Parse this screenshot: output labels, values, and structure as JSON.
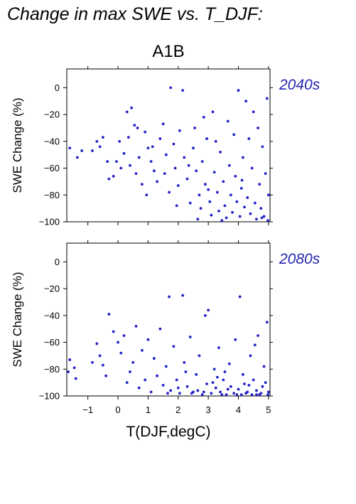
{
  "title": "Change in max SWE vs. T_DJF:",
  "colors": {
    "points": "#2020c8",
    "period_label": "#2626b0",
    "axes": "#000000"
  },
  "chart_data": [
    {
      "type": "scatter",
      "scenario": "A1B",
      "period": "2040s",
      "xlabel": "T(DJF,degC)",
      "ylabel": "SWE Change (%)",
      "xlim": [
        -1.7,
        5.05
      ],
      "ylim": [
        -100,
        14
      ],
      "x_ticks": [
        -1,
        0,
        1,
        2,
        3,
        4,
        5
      ],
      "y_ticks": [
        0,
        -20,
        -40,
        -60,
        -80,
        -100
      ],
      "x_tick_labels": [],
      "y_tick_labels": [
        "0",
        "−20",
        "−40",
        "−60",
        "−80",
        "−100"
      ],
      "grid": false,
      "points": [
        [
          -1.6,
          -45
        ],
        [
          -1.35,
          -52
        ],
        [
          -1.2,
          -47
        ],
        [
          -0.85,
          -47
        ],
        [
          -0.7,
          -40
        ],
        [
          -0.6,
          -44
        ],
        [
          -0.5,
          -37
        ],
        [
          -0.35,
          -55
        ],
        [
          -0.3,
          -68
        ],
        [
          -0.15,
          -66
        ],
        [
          -0.05,
          -55
        ],
        [
          0.05,
          -40
        ],
        [
          0.1,
          -60
        ],
        [
          0.2,
          -49
        ],
        [
          0.3,
          -18
        ],
        [
          0.35,
          -37
        ],
        [
          0.45,
          -15
        ],
        [
          0.55,
          -28
        ],
        [
          0.6,
          -64
        ],
        [
          0.7,
          -52
        ],
        [
          0.8,
          -72
        ],
        [
          0.9,
          -33
        ],
        [
          1.0,
          -45
        ],
        [
          1.1,
          -55
        ],
        [
          1.2,
          -62
        ],
        [
          1.3,
          -70
        ],
        [
          1.4,
          -38
        ],
        [
          1.5,
          -27
        ],
        [
          1.6,
          -50
        ],
        [
          1.7,
          -78
        ],
        [
          1.75,
          0
        ],
        [
          1.85,
          -42
        ],
        [
          1.9,
          -60
        ],
        [
          2.0,
          -73
        ],
        [
          2.05,
          -32
        ],
        [
          2.15,
          -2
        ],
        [
          2.2,
          -52
        ],
        [
          2.3,
          -68
        ],
        [
          2.4,
          -86
        ],
        [
          2.5,
          -45
        ],
        [
          2.55,
          -30
        ],
        [
          2.6,
          -62
        ],
        [
          2.7,
          -80
        ],
        [
          2.75,
          -90
        ],
        [
          2.8,
          -55
        ],
        [
          2.9,
          -72
        ],
        [
          2.95,
          -38
        ],
        [
          3.05,
          -85
        ],
        [
          3.1,
          -95
        ],
        [
          3.15,
          -18
        ],
        [
          3.2,
          -63
        ],
        [
          3.3,
          -78
        ],
        [
          3.35,
          -92
        ],
        [
          3.4,
          -48
        ],
        [
          3.5,
          -70
        ],
        [
          3.55,
          -88
        ],
        [
          3.6,
          -97
        ],
        [
          3.7,
          -58
        ],
        [
          3.75,
          -80
        ],
        [
          3.8,
          -93
        ],
        [
          3.85,
          -35
        ],
        [
          3.9,
          -66
        ],
        [
          3.95,
          -85
        ],
        [
          4.0,
          -2
        ],
        [
          4.05,
          -96
        ],
        [
          4.1,
          -75
        ],
        [
          4.15,
          -52
        ],
        [
          4.2,
          -89
        ],
        [
          4.25,
          -10
        ],
        [
          4.3,
          -82
        ],
        [
          4.4,
          -94
        ],
        [
          4.45,
          -60
        ],
        [
          4.5,
          -18
        ],
        [
          4.55,
          -86
        ],
        [
          4.6,
          -98
        ],
        [
          4.7,
          -72
        ],
        [
          4.75,
          -90
        ],
        [
          4.8,
          -44
        ],
        [
          4.85,
          -96
        ],
        [
          4.95,
          -8
        ],
        [
          5.0,
          -80
        ],
        [
          4.98,
          -99
        ],
        [
          4.9,
          -64
        ],
        [
          4.65,
          -30
        ],
        [
          3.25,
          -40
        ],
        [
          2.85,
          -22
        ],
        [
          2.35,
          -58
        ],
        [
          1.95,
          -88
        ],
        [
          1.55,
          -64
        ],
        [
          1.15,
          -44
        ],
        [
          0.95,
          -80
        ],
        [
          0.65,
          -30
        ],
        [
          0.4,
          -58
        ],
        [
          3.65,
          -25
        ],
        [
          4.35,
          -38
        ],
        [
          3.45,
          -99
        ],
        [
          2.65,
          -98
        ],
        [
          4.78,
          -97
        ],
        [
          3.0,
          -76
        ],
        [
          4.12,
          -69
        ]
      ]
    },
    {
      "type": "scatter",
      "scenario": "A1B",
      "period": "2080s",
      "xlabel": "T(DJF,degC)",
      "ylabel": "SWE Change (%)",
      "xlim": [
        -1.7,
        5.05
      ],
      "ylim": [
        -100,
        14
      ],
      "x_ticks": [
        -1,
        0,
        1,
        2,
        3,
        4,
        5
      ],
      "y_ticks": [
        0,
        -20,
        -40,
        -60,
        -80,
        -100
      ],
      "x_tick_labels": [
        "−1",
        "0",
        "1",
        "2",
        "3",
        "4",
        "5"
      ],
      "y_tick_labels": [
        "0",
        "−20",
        "−40",
        "−60",
        "−80",
        "−100"
      ],
      "grid": false,
      "points": [
        [
          -1.6,
          -73
        ],
        [
          -1.65,
          -82
        ],
        [
          -1.45,
          -79
        ],
        [
          -1.4,
          -87
        ],
        [
          -0.85,
          -75
        ],
        [
          -0.7,
          -61
        ],
        [
          -0.6,
          -70
        ],
        [
          -0.5,
          -77
        ],
        [
          -0.4,
          -85
        ],
        [
          -0.3,
          -39
        ],
        [
          -0.15,
          -52
        ],
        [
          0.0,
          -60
        ],
        [
          0.1,
          -68
        ],
        [
          0.2,
          -55
        ],
        [
          0.3,
          -90
        ],
        [
          0.4,
          -82
        ],
        [
          0.5,
          -75
        ],
        [
          0.6,
          -48
        ],
        [
          0.7,
          -94
        ],
        [
          0.8,
          -66
        ],
        [
          0.9,
          -88
        ],
        [
          1.0,
          -58
        ],
        [
          1.1,
          -97
        ],
        [
          1.2,
          -72
        ],
        [
          1.3,
          -85
        ],
        [
          1.4,
          -50
        ],
        [
          1.5,
          -92
        ],
        [
          1.6,
          -78
        ],
        [
          1.7,
          -26
        ],
        [
          1.75,
          -96
        ],
        [
          1.85,
          -63
        ],
        [
          1.95,
          -88
        ],
        [
          2.05,
          -98
        ],
        [
          2.15,
          -25
        ],
        [
          2.2,
          -75
        ],
        [
          2.3,
          -93
        ],
        [
          2.4,
          -56
        ],
        [
          2.5,
          -97
        ],
        [
          2.6,
          -84
        ],
        [
          2.7,
          -70
        ],
        [
          2.8,
          -99
        ],
        [
          2.9,
          -40
        ],
        [
          2.95,
          -91
        ],
        [
          3.0,
          -36
        ],
        [
          3.1,
          -98
        ],
        [
          3.2,
          -80
        ],
        [
          3.25,
          -94
        ],
        [
          3.35,
          -64
        ],
        [
          3.4,
          -97
        ],
        [
          3.5,
          -88
        ],
        [
          3.6,
          -99
        ],
        [
          3.7,
          -76
        ],
        [
          3.75,
          -93
        ],
        [
          3.85,
          -98
        ],
        [
          3.9,
          -58
        ],
        [
          4.0,
          -95
        ],
        [
          4.05,
          -26
        ],
        [
          4.1,
          -99
        ],
        [
          4.15,
          -84
        ],
        [
          4.2,
          -91
        ],
        [
          4.3,
          -97
        ],
        [
          4.4,
          -70
        ],
        [
          4.45,
          -99
        ],
        [
          4.5,
          -88
        ],
        [
          4.6,
          -96
        ],
        [
          4.65,
          -55
        ],
        [
          4.7,
          -99
        ],
        [
          4.8,
          -93
        ],
        [
          4.85,
          -78
        ],
        [
          4.95,
          -45
        ],
        [
          5.0,
          -97
        ],
        [
          4.98,
          -99
        ],
        [
          4.9,
          -90
        ],
        [
          4.55,
          -62
        ],
        [
          3.55,
          -82
        ],
        [
          3.15,
          -90
        ],
        [
          2.65,
          -96
        ],
        [
          2.25,
          -82
        ],
        [
          1.65,
          -98
        ],
        [
          3.45,
          -99
        ],
        [
          4.25,
          -98
        ],
        [
          3.95,
          -99
        ],
        [
          2.85,
          -97
        ],
        [
          4.75,
          -98
        ],
        [
          3.3,
          -86
        ],
        [
          4.35,
          -92
        ],
        [
          3.65,
          -95
        ],
        [
          2.45,
          -98
        ],
        [
          2.0,
          -94
        ],
        [
          4.6,
          -99
        ]
      ]
    }
  ]
}
